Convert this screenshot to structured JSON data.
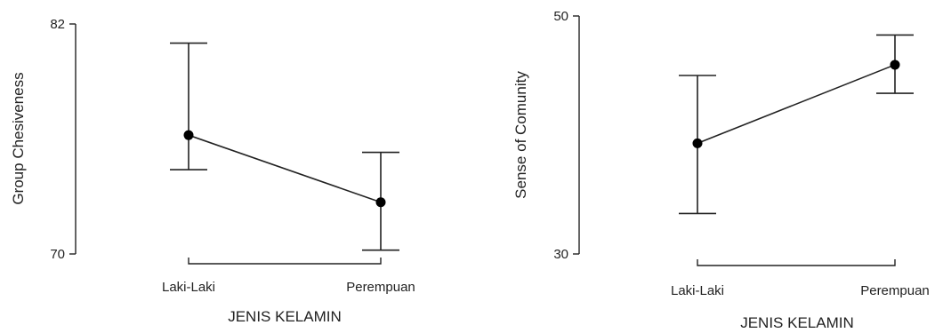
{
  "chart_data": [
    {
      "type": "line",
      "title": "",
      "xlabel": "JENIS KELAMIN",
      "ylabel": "Group Chesiveness",
      "categories": [
        "Laki-Laki",
        "Perempuan"
      ],
      "ylim": [
        70,
        82
      ],
      "yticks": [
        70,
        82
      ],
      "grid": false,
      "series": [
        {
          "values": [
            76.2,
            72.7
          ],
          "lower": [
            74.4,
            70.2
          ],
          "upper": [
            81.0,
            75.3
          ]
        }
      ]
    },
    {
      "type": "line",
      "title": "",
      "xlabel": "JENIS KELAMIN",
      "ylabel": "Sense of Comunity",
      "categories": [
        "Laki-Laki",
        "Perempuan"
      ],
      "ylim": [
        30,
        50
      ],
      "yticks": [
        30,
        50
      ],
      "grid": false,
      "series": [
        {
          "values": [
            39.3,
            45.9
          ],
          "lower": [
            33.4,
            43.5
          ],
          "upper": [
            45.0,
            48.4
          ]
        }
      ]
    }
  ]
}
